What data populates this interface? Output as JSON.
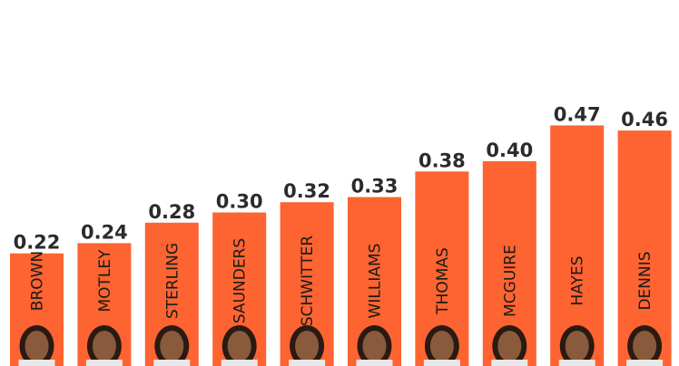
{
  "chart_data": {
    "type": "bar",
    "categories": [
      "BROWN",
      "MOTLEY",
      "STERLING",
      "SAUNDERS",
      "SCHWITTER",
      "WILLIAMS",
      "THOMAS",
      "MCGUIRE",
      "HAYES",
      "DENNIS"
    ],
    "values": [
      0.22,
      0.24,
      0.28,
      0.3,
      0.32,
      0.33,
      0.38,
      0.4,
      0.47,
      0.46
    ],
    "value_labels": [
      "0.22",
      "0.24",
      "0.28",
      "0.30",
      "0.32",
      "0.33",
      "0.38",
      "0.40",
      "0.47",
      "0.46"
    ],
    "color": "#fd6431"
  }
}
